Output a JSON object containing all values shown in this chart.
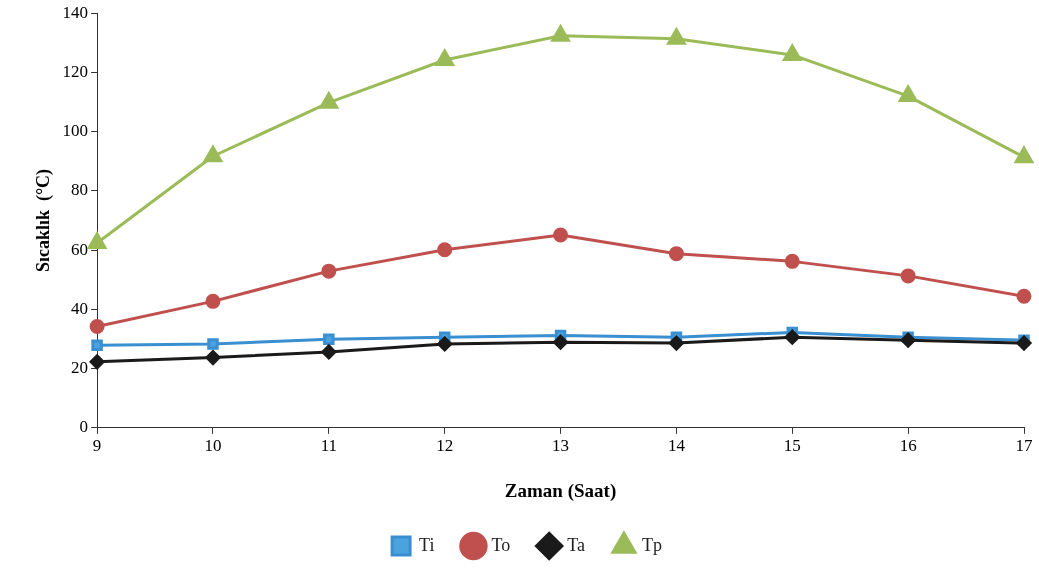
{
  "chart_data": {
    "type": "line",
    "xlabel": "Zaman (Saat)",
    "ylabel": "Sıcaklık  (°C)",
    "x": [
      9,
      10,
      11,
      12,
      13,
      14,
      15,
      16,
      17
    ],
    "series": [
      {
        "name": "Ti",
        "color": "#3a8fd0",
        "marker": "square",
        "values": [
          27.9,
          28.3,
          29.9,
          30.6,
          31.2,
          30.6,
          32.2,
          30.6,
          29.6
        ]
      },
      {
        "name": "To",
        "color": "#c0504d",
        "marker": "circle",
        "values": [
          34.2,
          42.7,
          52.9,
          60.1,
          65.1,
          58.8,
          56.2,
          51.3,
          44.4
        ]
      },
      {
        "name": "Ta",
        "color": "#1a1a1a",
        "marker": "diamond",
        "values": [
          22.3,
          23.7,
          25.6,
          28.3,
          28.9,
          28.6,
          30.6,
          29.6,
          28.6
        ]
      },
      {
        "name": "Tp",
        "color": "#9bbb59",
        "marker": "triangle",
        "values": [
          62.4,
          91.7,
          109.8,
          124.2,
          132.4,
          131.4,
          125.9,
          112,
          91.4
        ]
      }
    ],
    "xlim": [
      9,
      17
    ],
    "xticks": [
      9,
      10,
      11,
      12,
      13,
      14,
      15,
      16,
      17
    ],
    "ylim": [
      0,
      140
    ],
    "yticks": [
      0,
      20,
      40,
      60,
      80,
      100,
      120,
      140
    ],
    "grid": false,
    "legend": "bottom"
  }
}
